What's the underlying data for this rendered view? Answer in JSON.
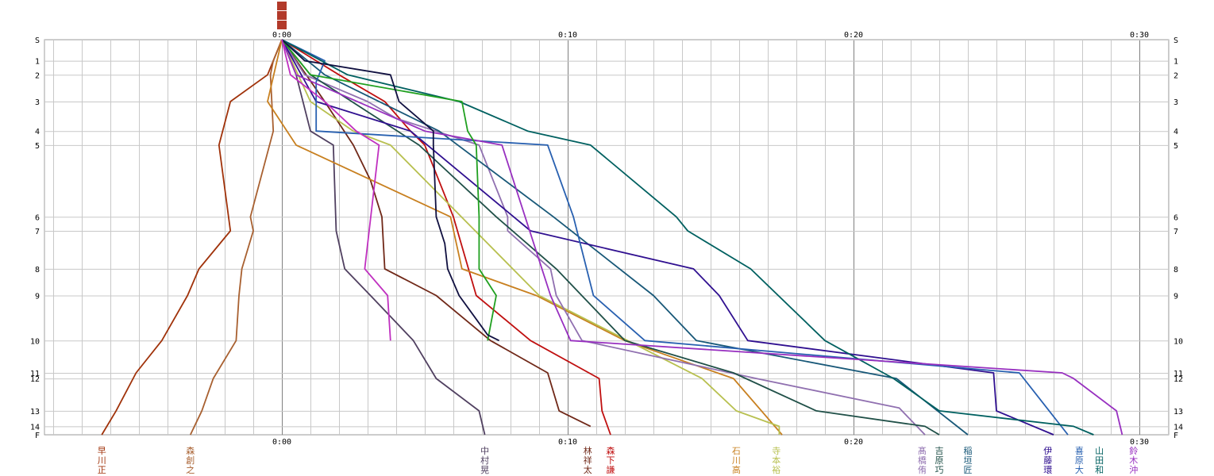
{
  "chart_data": {
    "type": "line",
    "title_chars": [
      "",
      "",
      ""
    ],
    "x_ticks_top": [
      "0:00",
      "0:10",
      "0:20",
      "0:30"
    ],
    "x_ticks_bottom": [
      "0:00",
      "0:10",
      "0:20",
      "0:30"
    ],
    "x_range_min": [
      -8.5,
      31.2
    ],
    "y_ticks": [
      "S",
      "1",
      "2",
      "3",
      "4",
      "5",
      "6",
      "7",
      "8",
      "9",
      "10",
      "11",
      "12",
      "13",
      "14",
      "F"
    ],
    "y_positions": [
      0,
      1.5,
      2.5,
      4.4,
      6.5,
      7.5,
      12.6,
      13.6,
      16.3,
      18.2,
      21.4,
      23.7,
      24.1,
      26.4,
      27.5,
      28.1
    ],
    "grid": true,
    "series": [
      {
        "name": "早川正",
        "color": "#a0320a",
        "x": [
          0,
          -0.3,
          -0.5,
          -1.8,
          -2.2,
          -1.8,
          -2.9,
          -3.3,
          -4.2,
          -5.1,
          -5.8,
          -6.3
        ],
        "y": [
          0,
          1.5,
          2.5,
          4.4,
          7.5,
          13.6,
          16.3,
          18.2,
          21.4,
          23.7,
          26.4,
          28.1
        ]
      },
      {
        "name": "森創之",
        "color": "#a86030",
        "x": [
          0,
          -0.3,
          -0.4,
          -0.3,
          -1.1,
          -1.0,
          -1.4,
          -1.5,
          -1.6,
          -2.4,
          -2.8,
          -3.2
        ],
        "y": [
          0,
          1.5,
          2.5,
          6.5,
          12.6,
          13.6,
          16.3,
          18.2,
          21.4,
          24.1,
          26.4,
          28.1
        ]
      },
      {
        "name": "中村晃",
        "color": "#504060",
        "x": [
          0,
          0.5,
          1.0,
          1.8,
          1.9,
          2.2,
          3.1,
          4.6,
          5.4,
          6.9,
          7.1
        ],
        "y": [
          0,
          2.5,
          6.5,
          7.5,
          13.6,
          16.3,
          18.2,
          21.4,
          24.1,
          26.4,
          28.1
        ]
      },
      {
        "name": "林祥太",
        "color": "#702818",
        "x": [
          0,
          1.5,
          2.5,
          3.1,
          3.5,
          3.6,
          5.4,
          7.3,
          9.3,
          9.7,
          10.8
        ],
        "y": [
          0,
          4.4,
          7.5,
          10.0,
          12.6,
          16.3,
          18.2,
          21.4,
          23.7,
          26.4,
          27.5
        ]
      },
      {
        "name": "森下謙",
        "color": "#c01010",
        "x": [
          0,
          2.0,
          3.6,
          4.5,
          5.0,
          6.0,
          6.8,
          8.7,
          11.1,
          11.2,
          11.5
        ],
        "y": [
          0,
          2.5,
          4.4,
          6.5,
          7.5,
          12.6,
          18.2,
          21.4,
          24.1,
          26.4,
          28.1
        ]
      },
      {
        "name": "石川高",
        "color": "#c88020",
        "x": [
          0,
          -0.5,
          0.5,
          5.9,
          6.3,
          8.9,
          12.0,
          15.8,
          17.5
        ],
        "y": [
          0,
          4.4,
          7.5,
          12.6,
          16.3,
          18.2,
          21.4,
          24.1,
          28.1
        ]
      },
      {
        "name": "寺本裕",
        "color": "#b8c050",
        "x": [
          0,
          1.0,
          2.5,
          3.8,
          9.0,
          14.7,
          15.9,
          17.4,
          17.4
        ],
        "y": [
          0,
          4.4,
          6.5,
          7.5,
          18.2,
          24.1,
          26.4,
          27.5,
          28.1
        ]
      },
      {
        "name": "髙橋侑",
        "color": "#9070b0",
        "x": [
          0,
          0.8,
          3.0,
          4.0,
          6.9,
          7.9,
          7.9,
          9.4,
          9.6,
          10.5,
          16.6,
          21.6,
          22.5
        ],
        "y": [
          0,
          2.5,
          4.4,
          5.6,
          7.5,
          12.6,
          13.6,
          16.3,
          18.2,
          21.4,
          24.1,
          26.2,
          28.1
        ]
      },
      {
        "name": "吉原巧",
        "color": "#205048",
        "x": [
          0,
          1.0,
          4.8,
          7.5,
          9.6,
          12.0,
          15.8,
          18.7,
          22.5,
          23.0
        ],
        "y": [
          0,
          2.5,
          7.5,
          12.6,
          16.3,
          21.4,
          23.7,
          26.4,
          27.5,
          28.1
        ]
      },
      {
        "name": "稲垣匠",
        "color": "#185878",
        "x": [
          0,
          1.5,
          5.5,
          9.5,
          13.0,
          14.5,
          21.5,
          24.0
        ],
        "y": [
          0,
          2.5,
          6.5,
          12.6,
          18.2,
          21.4,
          24.1,
          28.1
        ]
      },
      {
        "name": "伊藤環",
        "color": "#301090",
        "x": [
          0,
          1.2,
          4.5,
          8.7,
          14.4,
          15.3,
          16.3,
          24.9,
          25.0,
          27.0
        ],
        "y": [
          0,
          4.4,
          6.5,
          13.6,
          16.3,
          18.2,
          21.4,
          23.7,
          26.4,
          28.1
        ]
      },
      {
        "name": "喜原大",
        "color": "#2860b0",
        "x": [
          0,
          1.5,
          1.2,
          1.2,
          9.3,
          10.2,
          10.9,
          12.7,
          25.8,
          27.5
        ],
        "y": [
          0,
          1.5,
          3.0,
          6.5,
          7.5,
          12.6,
          18.2,
          21.4,
          23.7,
          28.1
        ]
      },
      {
        "name": "山田和",
        "color": "#006060",
        "x": [
          0,
          2.3,
          6.2,
          8.6,
          10.8,
          13.8,
          14.2,
          16.4,
          19.0,
          21.4,
          23.0,
          27.7,
          28.4
        ],
        "y": [
          0,
          2.5,
          4.4,
          6.5,
          7.5,
          12.6,
          13.6,
          16.3,
          21.4,
          24.1,
          26.4,
          27.5,
          28.1
        ]
      },
      {
        "name": "鈴木沖",
        "color": "#9830c0",
        "x": [
          0,
          0.5,
          5.0,
          7.7,
          9.4,
          10.1,
          27.3,
          27.7,
          29.2,
          29.4
        ],
        "y": [
          0,
          2.5,
          6.5,
          7.5,
          18.2,
          21.4,
          23.7,
          24.1,
          26.4,
          28.1
        ]
      },
      {
        "name": "",
        "color": "#20a020",
        "x": [
          0,
          1.0,
          6.3,
          6.5,
          6.8,
          6.9,
          6.9,
          7.5,
          7.2
        ],
        "y": [
          0,
          2.5,
          4.4,
          6.5,
          7.5,
          12.6,
          16.3,
          18.2,
          21.4
        ]
      },
      {
        "name": "",
        "color": "#101040",
        "x": [
          0,
          0.8,
          3.8,
          4.1,
          5.3,
          5.3,
          5.4,
          5.7,
          5.8,
          6.2,
          7.2,
          7.6
        ],
        "y": [
          0,
          1.5,
          2.5,
          4.4,
          6.5,
          7.5,
          12.6,
          14.5,
          16.3,
          18.2,
          21.0,
          21.4
        ]
      },
      {
        "name": "",
        "color": "#c030c0",
        "x": [
          0,
          0.3,
          1.5,
          2.6,
          3.4,
          2.9,
          3.7,
          3.8
        ],
        "y": [
          0,
          2.5,
          4.4,
          6.5,
          7.5,
          16.3,
          18.2,
          21.4
        ]
      }
    ]
  },
  "bottom_labels": [
    {
      "name": "早川正",
      "color": "#a0320a",
      "x_min": -6.3
    },
    {
      "name": "森創之",
      "color": "#a86030",
      "x_min": -3.2
    },
    {
      "name": "中村晃",
      "color": "#504060",
      "x_min": 7.1
    },
    {
      "name": "林祥太",
      "color": "#702818",
      "x_min": 10.7
    },
    {
      "name": "森下謙",
      "color": "#c01010",
      "x_min": 11.5
    },
    {
      "name": "石川高",
      "color": "#c88020",
      "x_min": 15.9
    },
    {
      "name": "寺本裕",
      "color": "#b8c050",
      "x_min": 17.3
    },
    {
      "name": "髙橋侑",
      "color": "#9070b0",
      "x_min": 22.4
    },
    {
      "name": "吉原巧",
      "color": "#205048",
      "x_min": 23.0
    },
    {
      "name": "稲垣匠",
      "color": "#185878",
      "x_min": 24.0
    },
    {
      "name": "伊藤環",
      "color": "#301090",
      "x_min": 26.8
    },
    {
      "name": "喜原大",
      "color": "#2860b0",
      "x_min": 27.9
    },
    {
      "name": "山田和",
      "color": "#006060",
      "x_min": 28.6
    },
    {
      "name": "鈴木沖",
      "color": "#9830c0",
      "x_min": 29.8
    }
  ]
}
